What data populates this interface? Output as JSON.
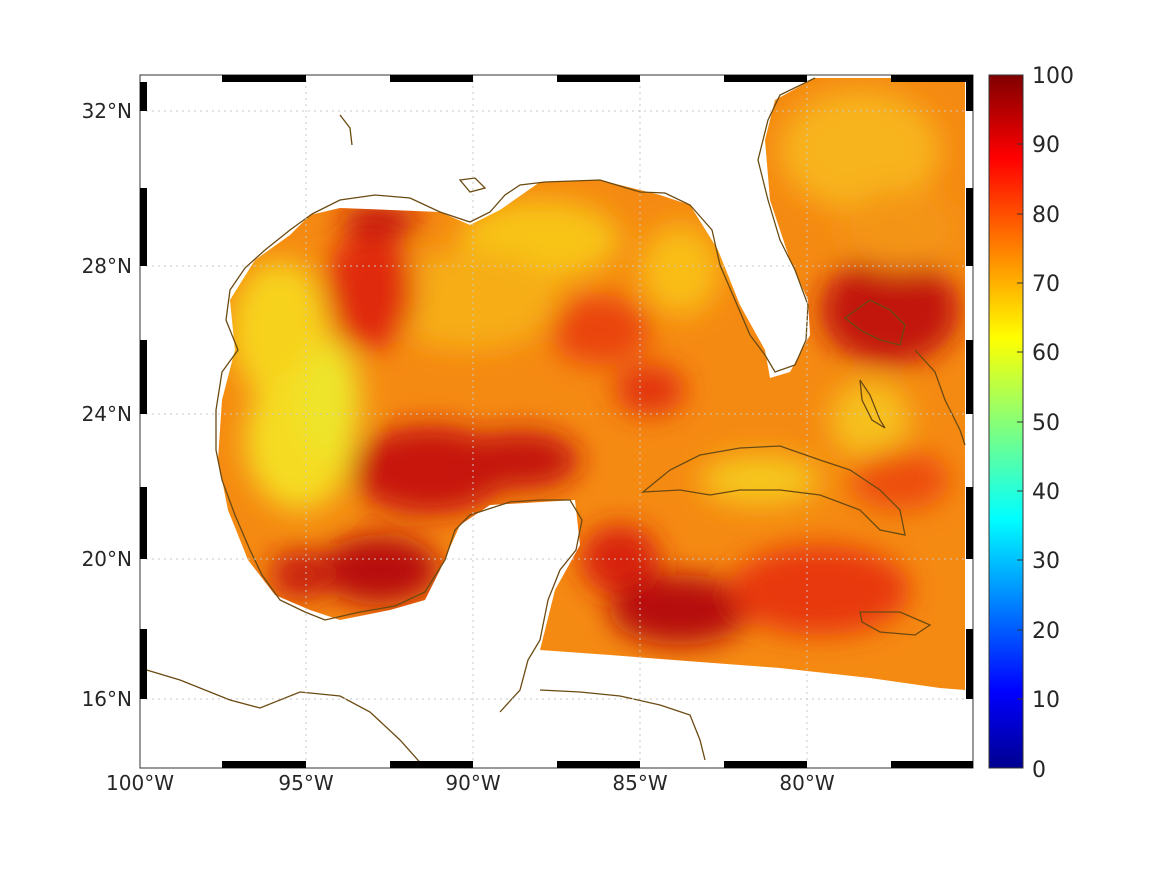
{
  "map": {
    "lon_labels": [
      "100°W",
      "95°W",
      "90°W",
      "85°W",
      "80°W"
    ],
    "lon_values": [
      -100,
      -95,
      -90,
      -85,
      -80
    ],
    "lat_labels": [
      "32°N",
      "28°N",
      "24°N",
      "20°N",
      "16°N"
    ],
    "lat_values": [
      32,
      28,
      24,
      20,
      16
    ],
    "lon_range": [
      -100,
      -75
    ],
    "lat_range": [
      14.5,
      33
    ],
    "coastline_color": "#6b4a12",
    "grid": true
  },
  "colorbar": {
    "tick_labels": [
      "0",
      "10",
      "20",
      "30",
      "40",
      "50",
      "60",
      "70",
      "80",
      "90",
      "100"
    ],
    "range": [
      0,
      100
    ],
    "colormap": "jet"
  }
}
